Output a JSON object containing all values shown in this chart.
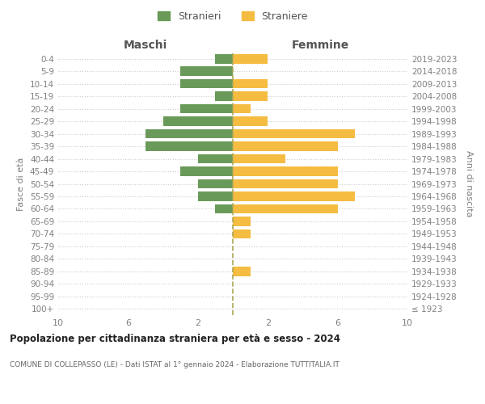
{
  "age_groups": [
    "100+",
    "95-99",
    "90-94",
    "85-89",
    "80-84",
    "75-79",
    "70-74",
    "65-69",
    "60-64",
    "55-59",
    "50-54",
    "45-49",
    "40-44",
    "35-39",
    "30-34",
    "25-29",
    "20-24",
    "15-19",
    "10-14",
    "5-9",
    "0-4"
  ],
  "birth_years": [
    "≤ 1923",
    "1924-1928",
    "1929-1933",
    "1934-1938",
    "1939-1943",
    "1944-1948",
    "1949-1953",
    "1954-1958",
    "1959-1963",
    "1964-1968",
    "1969-1973",
    "1974-1978",
    "1979-1983",
    "1984-1988",
    "1989-1993",
    "1994-1998",
    "1999-2003",
    "2004-2008",
    "2009-2013",
    "2014-2018",
    "2019-2023"
  ],
  "maschi": [
    0,
    0,
    0,
    0,
    0,
    0,
    0,
    0,
    1,
    2,
    2,
    3,
    2,
    5,
    5,
    4,
    3,
    1,
    3,
    3,
    1
  ],
  "femmine": [
    0,
    0,
    0,
    1,
    0,
    0,
    1,
    1,
    6,
    7,
    6,
    6,
    3,
    6,
    7,
    2,
    1,
    2,
    2,
    0,
    2
  ],
  "color_maschi": "#6a9a5a",
  "color_femmine": "#f5bc42",
  "title": "Popolazione per cittadinanza straniera per età e sesso - 2024",
  "subtitle": "COMUNE DI COLLEPASSO (LE) - Dati ISTAT al 1° gennaio 2024 - Elaborazione TUTTITALIA.IT",
  "xlabel_left": "Maschi",
  "xlabel_right": "Femmine",
  "ylabel_left": "Fasce di età",
  "ylabel_right": "Anni di nascita",
  "legend_maschi": "Stranieri",
  "legend_femmine": "Straniere",
  "xlim": 10,
  "xticks": [
    -10,
    -6,
    -2,
    2,
    6,
    10
  ],
  "xticklabels": [
    "10",
    "6",
    "2",
    "2",
    "6",
    "10"
  ],
  "background_color": "#ffffff",
  "grid_color": "#cccccc",
  "dashed_color": "#aaa855",
  "text_color": "#808080",
  "header_color": "#555555",
  "title_color": "#222222",
  "subtitle_color": "#666666"
}
